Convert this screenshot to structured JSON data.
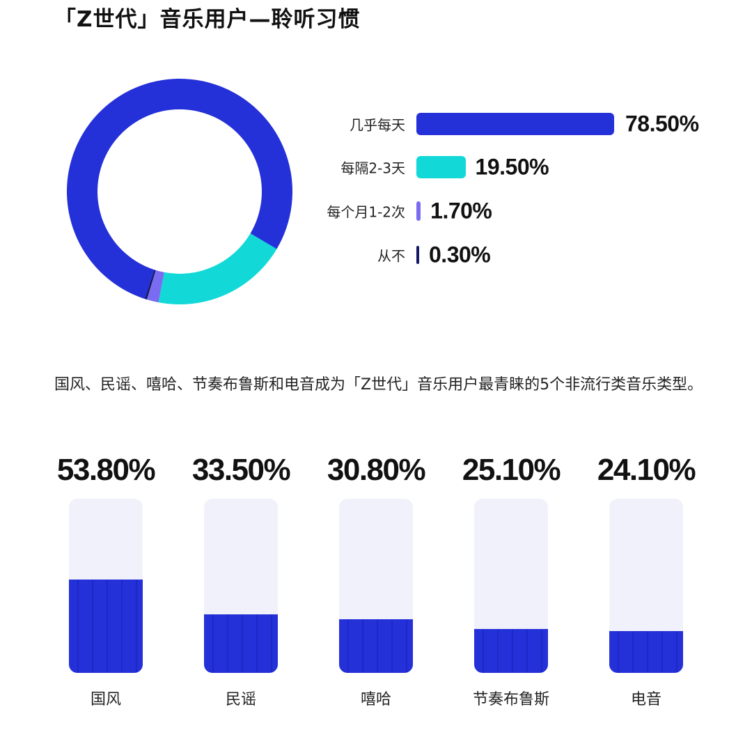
{
  "title": "「Z世代」音乐用户—聆听习惯",
  "description": "国风、民谣、嘻哈、节奏布鲁斯和电音成为「Z世代」音乐用户最青睐的5个非流行类音乐类型。",
  "chart_data": [
    {
      "type": "pie",
      "categories": [
        "几乎每天",
        "每隔2-3天",
        "每个月1-2次",
        "从不"
      ],
      "values": [
        78.5,
        19.5,
        1.7,
        0.3
      ],
      "value_labels": [
        "78.50%",
        "19.50%",
        "1.70%",
        "0.30%"
      ],
      "colors": [
        "#2430d8",
        "#12d8d8",
        "#7a6cf0",
        "#141866"
      ],
      "start_angle_deg": 198,
      "legend": "right, as horizontal bars",
      "unit": "%"
    },
    {
      "type": "bar",
      "categories": [
        "国风",
        "民谣",
        "嘻哈",
        "节奏布鲁斯",
        "电音"
      ],
      "values": [
        53.8,
        33.5,
        30.8,
        25.1,
        24.1
      ],
      "value_labels": [
        "53.80%",
        "33.50%",
        "30.80%",
        "25.10%",
        "24.10%"
      ],
      "ylim": [
        0,
        100
      ],
      "colors": {
        "fill": "#2430d8",
        "track": "#f1f1fb"
      },
      "unit": "%"
    }
  ]
}
